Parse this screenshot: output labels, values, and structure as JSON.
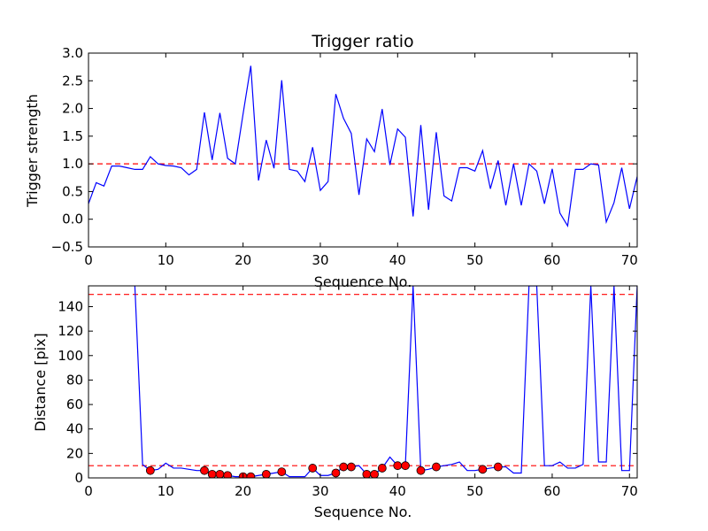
{
  "chart_data": [
    {
      "type": "line",
      "title": "Trigger ratio",
      "xlabel": "Sequence No.",
      "ylabel": "Trigger strength",
      "xlim": [
        0,
        71
      ],
      "ylim": [
        -0.5,
        3.0
      ],
      "xticks": [
        0,
        10,
        20,
        30,
        40,
        50,
        60,
        70
      ],
      "yticks": [
        -0.5,
        0.0,
        0.5,
        1.0,
        1.5,
        2.0,
        2.5,
        3.0
      ],
      "ytick_labels": [
        "−0.5",
        "0.0",
        "0.5",
        "1.0",
        "1.5",
        "2.0",
        "2.5",
        "3.0"
      ],
      "line_color": "#0000ff",
      "threshold": {
        "value": 1.0,
        "color": "#ff0000",
        "style": "dashed"
      },
      "series": [
        {
          "name": "trigger strength",
          "x": [
            0,
            1,
            2,
            3,
            4,
            5,
            6,
            7,
            8,
            9,
            10,
            11,
            12,
            13,
            14,
            15,
            16,
            17,
            18,
            19,
            20,
            21,
            22,
            23,
            24,
            25,
            26,
            27,
            28,
            29,
            30,
            31,
            32,
            33,
            34,
            35,
            36,
            37,
            38,
            39,
            40,
            41,
            42,
            43,
            44,
            45,
            46,
            47,
            48,
            49,
            50,
            51,
            52,
            53,
            54,
            55,
            56,
            57,
            58,
            59,
            60,
            61,
            62,
            63,
            64,
            65,
            66,
            67,
            68,
            69,
            70,
            71
          ],
          "values": [
            0.28,
            0.66,
            0.6,
            0.96,
            0.96,
            0.93,
            0.9,
            0.9,
            1.13,
            1.0,
            0.97,
            0.96,
            0.93,
            0.8,
            0.9,
            1.93,
            1.07,
            1.92,
            1.1,
            1.0,
            1.9,
            2.77,
            0.7,
            1.43,
            0.92,
            2.51,
            0.9,
            0.87,
            0.68,
            1.3,
            0.52,
            0.68,
            2.26,
            1.82,
            1.55,
            0.44,
            1.45,
            1.22,
            1.99,
            0.98,
            1.63,
            1.48,
            0.05,
            1.7,
            0.17,
            1.57,
            0.42,
            0.33,
            0.93,
            0.93,
            0.87,
            1.24,
            0.55,
            1.06,
            0.25,
            1.0,
            0.25,
            1.0,
            0.87,
            0.28,
            0.91,
            0.11,
            -0.12,
            0.9,
            0.9,
            1.0,
            0.98,
            -0.05,
            0.3,
            0.93,
            0.19,
            0.77
          ]
        }
      ]
    },
    {
      "type": "line",
      "title": "",
      "xlabel": "Sequence No.",
      "ylabel": "Distance [pix]",
      "xlim": [
        0,
        71
      ],
      "ylim": [
        0,
        157
      ],
      "xticks": [
        0,
        10,
        20,
        30,
        40,
        50,
        60,
        70
      ],
      "yticks": [
        0,
        20,
        40,
        60,
        80,
        100,
        120,
        140
      ],
      "line_color": "#0000ff",
      "marker_color": "#ff0000",
      "thresholds": [
        {
          "value": 150,
          "color": "#ff0000",
          "style": "dashed"
        },
        {
          "value": 10,
          "color": "#ff0000",
          "style": "dashed"
        }
      ],
      "series": [
        {
          "name": "distance",
          "x": [
            6,
            7,
            8,
            9,
            10,
            11,
            12,
            13,
            14,
            15,
            16,
            17,
            18,
            19,
            20,
            21,
            22,
            23,
            24,
            25,
            26,
            27,
            28,
            29,
            30,
            31,
            32,
            33,
            34,
            35,
            36,
            37,
            38,
            39,
            40,
            41,
            42,
            43,
            44,
            45,
            46,
            47,
            48,
            49,
            50,
            51,
            52,
            53,
            54,
            55,
            56,
            57,
            58,
            59,
            60,
            61,
            62,
            63,
            64,
            65,
            66,
            67,
            68,
            69,
            70,
            71
          ],
          "values": [
            157,
            11,
            6,
            7,
            12,
            8,
            8,
            7,
            6,
            6,
            3,
            3,
            2,
            1,
            1,
            1,
            2,
            3,
            4,
            5,
            1,
            1,
            1,
            8,
            2,
            2,
            4,
            9,
            9,
            10,
            3,
            3,
            8,
            17,
            10,
            10,
            157,
            6,
            7,
            9,
            10,
            11,
            13,
            6,
            6,
            7,
            8,
            9,
            9,
            4,
            4,
            157,
            157,
            10,
            10,
            13,
            8,
            8,
            11,
            157,
            13,
            13,
            157,
            6,
            6,
            157
          ]
        },
        {
          "name": "markers",
          "x": [
            8,
            15,
            16,
            17,
            18,
            20,
            21,
            23,
            25,
            29,
            32,
            33,
            34,
            36,
            37,
            38,
            40,
            41,
            43,
            45,
            51,
            53
          ],
          "values": [
            6,
            6,
            3,
            3,
            2,
            1,
            1,
            3,
            5,
            8,
            4,
            9,
            9,
            3,
            3,
            8,
            10,
            10,
            6,
            9,
            7,
            9
          ]
        }
      ]
    }
  ]
}
